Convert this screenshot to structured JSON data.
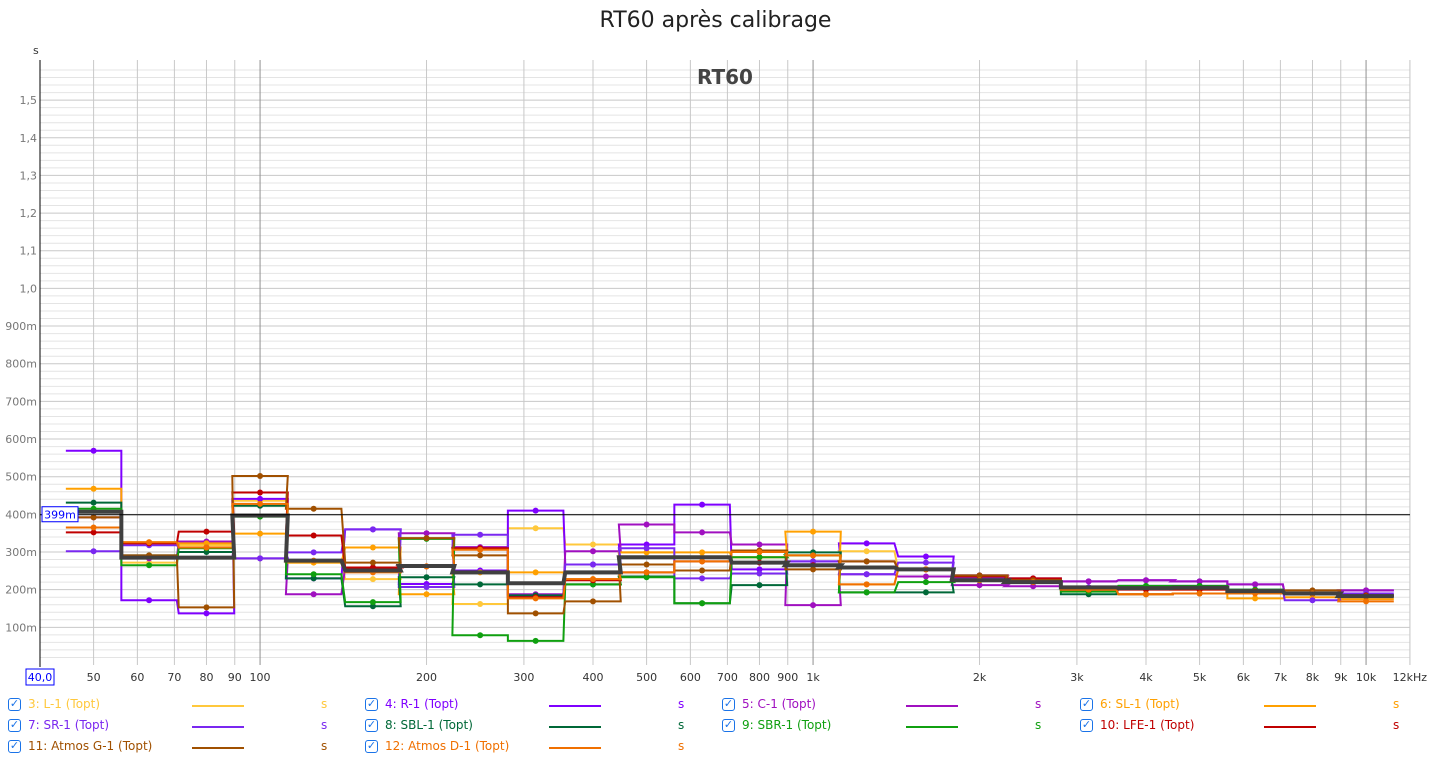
{
  "title": "RT60 après calibrage",
  "chart_data": {
    "type": "line",
    "title": "RT60 après calibrage",
    "inner_label": "RT60",
    "y_unit": "s",
    "xscale": "log",
    "xlim": [
      40,
      12000
    ],
    "ylim": [
      0,
      1.6
    ],
    "cursor": {
      "value": 0.399,
      "label": "399m"
    },
    "x_start_label": "40,0",
    "x_ticks": [
      {
        "v": 50,
        "label": "50"
      },
      {
        "v": 60,
        "label": "60"
      },
      {
        "v": 70,
        "label": "70"
      },
      {
        "v": 80,
        "label": "80"
      },
      {
        "v": 90,
        "label": "90"
      },
      {
        "v": 100,
        "label": "100"
      },
      {
        "v": 200,
        "label": "200"
      },
      {
        "v": 300,
        "label": "300"
      },
      {
        "v": 400,
        "label": "400"
      },
      {
        "v": 500,
        "label": "500"
      },
      {
        "v": 600,
        "label": "600"
      },
      {
        "v": 700,
        "label": "700"
      },
      {
        "v": 800,
        "label": "800"
      },
      {
        "v": 900,
        "label": "900"
      },
      {
        "v": 1000,
        "label": "1k"
      },
      {
        "v": 2000,
        "label": "2k"
      },
      {
        "v": 3000,
        "label": "3k"
      },
      {
        "v": 4000,
        "label": "4k"
      },
      {
        "v": 5000,
        "label": "5k"
      },
      {
        "v": 6000,
        "label": "6k"
      },
      {
        "v": 7000,
        "label": "7k"
      },
      {
        "v": 8000,
        "label": "8k"
      },
      {
        "v": 9000,
        "label": "9k"
      },
      {
        "v": 10000,
        "label": "10k"
      },
      {
        "v": 12000,
        "label": "12kHz"
      }
    ],
    "y_ticks": [
      {
        "v": 0.1,
        "label": "100m"
      },
      {
        "v": 0.2,
        "label": "200m"
      },
      {
        "v": 0.3,
        "label": "300m"
      },
      {
        "v": 0.4,
        "label": "400m"
      },
      {
        "v": 0.5,
        "label": "500m"
      },
      {
        "v": 0.6,
        "label": "600m"
      },
      {
        "v": 0.7,
        "label": "700m"
      },
      {
        "v": 0.8,
        "label": "800m"
      },
      {
        "v": 0.9,
        "label": "900m"
      },
      {
        "v": 1.0,
        "label": "1,0"
      },
      {
        "v": 1.1,
        "label": "1,1"
      },
      {
        "v": 1.2,
        "label": "1,2"
      },
      {
        "v": 1.3,
        "label": "1,3"
      },
      {
        "v": 1.4,
        "label": "1,4"
      },
      {
        "v": 1.5,
        "label": "1,5"
      }
    ],
    "bands_hz": [
      50,
      63,
      80,
      100,
      125,
      160,
      200,
      250,
      315,
      400,
      500,
      630,
      800,
      1000,
      1250,
      1600,
      2000,
      2500,
      3150,
      4000,
      5000,
      6300,
      8000,
      10000
    ],
    "series": [
      {
        "name": "3: L-1 (Topt)",
        "unit": "s",
        "color": "#ffc83c",
        "values_ms": [
          392,
          272,
          318,
          436,
          272,
          228,
          262,
          162,
          363,
          320,
          299,
          286,
          286,
          291,
          302,
          254,
          225,
          225,
          206,
          204,
          200,
          196,
          190,
          183
        ]
      },
      {
        "name": "4: R-1 (Topt)",
        "unit": "s",
        "color": "#7f00ff",
        "values_ms": [
          569,
          172,
          137,
          441,
          230,
          360,
          215,
          251,
          410,
          267,
          320,
          426,
          254,
          275,
          323,
          288,
          238,
          230,
          222,
          225,
          222,
          214,
          190,
          198
        ]
      },
      {
        "name": "5: C-1 (Topt)",
        "unit": "s",
        "color": "#a010c0",
        "values_ms": [
          392,
          283,
          328,
          283,
          188,
          259,
          350,
          313,
          188,
          302,
          373,
          352,
          320,
          159,
          241,
          235,
          212,
          209,
          222,
          225,
          222,
          214,
          190,
          198
        ]
      },
      {
        "name": "6: SL-1 (Topt)",
        "unit": "s",
        "color": "#ffa000",
        "values_ms": [
          468,
          326,
          323,
          349,
          272,
          312,
          188,
          246,
          246,
          228,
          299,
          299,
          286,
          354,
          214,
          254,
          225,
          220,
          200,
          188,
          190,
          177,
          180,
          175
        ]
      },
      {
        "name": "7: SR-1 (Topt)",
        "unit": "s",
        "color": "#7a28f0",
        "values_ms": [
          302,
          318,
          312,
          283,
          299,
          360,
          207,
          346,
          185,
          267,
          310,
          230,
          243,
          275,
          241,
          272,
          230,
          220,
          206,
          210,
          210,
          200,
          172,
          190
        ]
      },
      {
        "name": "8: SBL-1 (Topt)",
        "unit": "s",
        "color": "#006838",
        "values_ms": [
          431,
          291,
          300,
          423,
          230,
          156,
          233,
          214,
          185,
          214,
          235,
          164,
          212,
          299,
          193,
          193,
          225,
          225,
          188,
          204,
          205,
          196,
          190,
          183
        ]
      },
      {
        "name": "9: SBR-1 (Topt)",
        "unit": "s",
        "color": "#10a010",
        "values_ms": [
          415,
          265,
          310,
          394,
          241,
          167,
          335,
          79,
          64,
          214,
          233,
          164,
          286,
          291,
          193,
          220,
          225,
          225,
          195,
          210,
          210,
          200,
          190,
          185
        ]
      },
      {
        "name": "10: LFE-1 (Topt)",
        "unit": "s",
        "color": "#c00000",
        "values_ms": [
          352,
          323,
          354,
          458,
          344,
          259,
          262,
          310,
          180,
          225,
          246,
          275,
          272,
          265,
          275,
          254,
          235,
          230,
          200,
          200,
          200,
          196,
          190,
          185
        ]
      },
      {
        "name": "11: Atmos G-1 (Topt)",
        "unit": "s",
        "color": "#a05000",
        "values_ms": [
          392,
          291,
          153,
          502,
          415,
          272,
          337,
          291,
          137,
          169,
          267,
          251,
          304,
          254,
          275,
          254,
          238,
          225,
          200,
          188,
          190,
          196,
          198,
          183
        ]
      },
      {
        "name": "12: Atmos D-1 (Topt)",
        "unit": "s",
        "color": "#f07000",
        "values_ms": [
          365,
          326,
          312,
          428,
          277,
          246,
          262,
          306,
          177,
          228,
          246,
          275,
          300,
          291,
          214,
          254,
          225,
          220,
          200,
          188,
          190,
          190,
          190,
          169
        ]
      }
    ],
    "average": {
      "color": "#404040",
      "values_ms": [
        407,
        285,
        285,
        397,
        277,
        251,
        263,
        246,
        217,
        246,
        286,
        286,
        272,
        265,
        259,
        254,
        225,
        220,
        206,
        204,
        205,
        196,
        190,
        183
      ]
    },
    "legend_position": "bottom"
  }
}
